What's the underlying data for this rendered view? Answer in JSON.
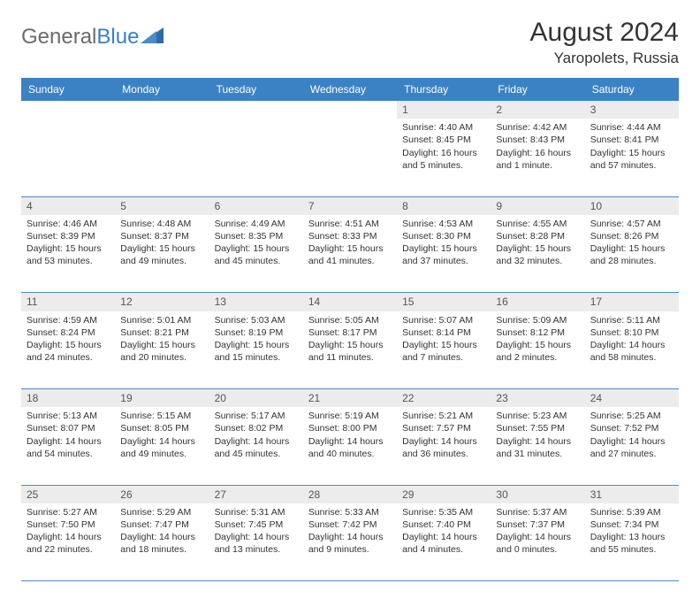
{
  "logo": {
    "text1": "General",
    "text2": "Blue"
  },
  "title": "August 2024",
  "subtitle": "Yaropolets, Russia",
  "colors": {
    "header_bg": "#3b82c4",
    "daynum_bg": "#ececec",
    "row_border": "#4a8bc9",
    "text": "#333333",
    "logo_gray": "#6b6b6b",
    "logo_blue": "#3b7fc4"
  },
  "weekdays": [
    "Sunday",
    "Monday",
    "Tuesday",
    "Wednesday",
    "Thursday",
    "Friday",
    "Saturday"
  ],
  "weeks": [
    {
      "nums": [
        "",
        "",
        "",
        "",
        "1",
        "2",
        "3"
      ],
      "cells": [
        "",
        "",
        "",
        "",
        "Sunrise: 4:40 AM\nSunset: 8:45 PM\nDaylight: 16 hours and 5 minutes.",
        "Sunrise: 4:42 AM\nSunset: 8:43 PM\nDaylight: 16 hours and 1 minute.",
        "Sunrise: 4:44 AM\nSunset: 8:41 PM\nDaylight: 15 hours and 57 minutes."
      ]
    },
    {
      "nums": [
        "4",
        "5",
        "6",
        "7",
        "8",
        "9",
        "10"
      ],
      "cells": [
        "Sunrise: 4:46 AM\nSunset: 8:39 PM\nDaylight: 15 hours and 53 minutes.",
        "Sunrise: 4:48 AM\nSunset: 8:37 PM\nDaylight: 15 hours and 49 minutes.",
        "Sunrise: 4:49 AM\nSunset: 8:35 PM\nDaylight: 15 hours and 45 minutes.",
        "Sunrise: 4:51 AM\nSunset: 8:33 PM\nDaylight: 15 hours and 41 minutes.",
        "Sunrise: 4:53 AM\nSunset: 8:30 PM\nDaylight: 15 hours and 37 minutes.",
        "Sunrise: 4:55 AM\nSunset: 8:28 PM\nDaylight: 15 hours and 32 minutes.",
        "Sunrise: 4:57 AM\nSunset: 8:26 PM\nDaylight: 15 hours and 28 minutes."
      ]
    },
    {
      "nums": [
        "11",
        "12",
        "13",
        "14",
        "15",
        "16",
        "17"
      ],
      "cells": [
        "Sunrise: 4:59 AM\nSunset: 8:24 PM\nDaylight: 15 hours and 24 minutes.",
        "Sunrise: 5:01 AM\nSunset: 8:21 PM\nDaylight: 15 hours and 20 minutes.",
        "Sunrise: 5:03 AM\nSunset: 8:19 PM\nDaylight: 15 hours and 15 minutes.",
        "Sunrise: 5:05 AM\nSunset: 8:17 PM\nDaylight: 15 hours and 11 minutes.",
        "Sunrise: 5:07 AM\nSunset: 8:14 PM\nDaylight: 15 hours and 7 minutes.",
        "Sunrise: 5:09 AM\nSunset: 8:12 PM\nDaylight: 15 hours and 2 minutes.",
        "Sunrise: 5:11 AM\nSunset: 8:10 PM\nDaylight: 14 hours and 58 minutes."
      ]
    },
    {
      "nums": [
        "18",
        "19",
        "20",
        "21",
        "22",
        "23",
        "24"
      ],
      "cells": [
        "Sunrise: 5:13 AM\nSunset: 8:07 PM\nDaylight: 14 hours and 54 minutes.",
        "Sunrise: 5:15 AM\nSunset: 8:05 PM\nDaylight: 14 hours and 49 minutes.",
        "Sunrise: 5:17 AM\nSunset: 8:02 PM\nDaylight: 14 hours and 45 minutes.",
        "Sunrise: 5:19 AM\nSunset: 8:00 PM\nDaylight: 14 hours and 40 minutes.",
        "Sunrise: 5:21 AM\nSunset: 7:57 PM\nDaylight: 14 hours and 36 minutes.",
        "Sunrise: 5:23 AM\nSunset: 7:55 PM\nDaylight: 14 hours and 31 minutes.",
        "Sunrise: 5:25 AM\nSunset: 7:52 PM\nDaylight: 14 hours and 27 minutes."
      ]
    },
    {
      "nums": [
        "25",
        "26",
        "27",
        "28",
        "29",
        "30",
        "31"
      ],
      "cells": [
        "Sunrise: 5:27 AM\nSunset: 7:50 PM\nDaylight: 14 hours and 22 minutes.",
        "Sunrise: 5:29 AM\nSunset: 7:47 PM\nDaylight: 14 hours and 18 minutes.",
        "Sunrise: 5:31 AM\nSunset: 7:45 PM\nDaylight: 14 hours and 13 minutes.",
        "Sunrise: 5:33 AM\nSunset: 7:42 PM\nDaylight: 14 hours and 9 minutes.",
        "Sunrise: 5:35 AM\nSunset: 7:40 PM\nDaylight: 14 hours and 4 minutes.",
        "Sunrise: 5:37 AM\nSunset: 7:37 PM\nDaylight: 14 hours and 0 minutes.",
        "Sunrise: 5:39 AM\nSunset: 7:34 PM\nDaylight: 13 hours and 55 minutes."
      ]
    }
  ]
}
